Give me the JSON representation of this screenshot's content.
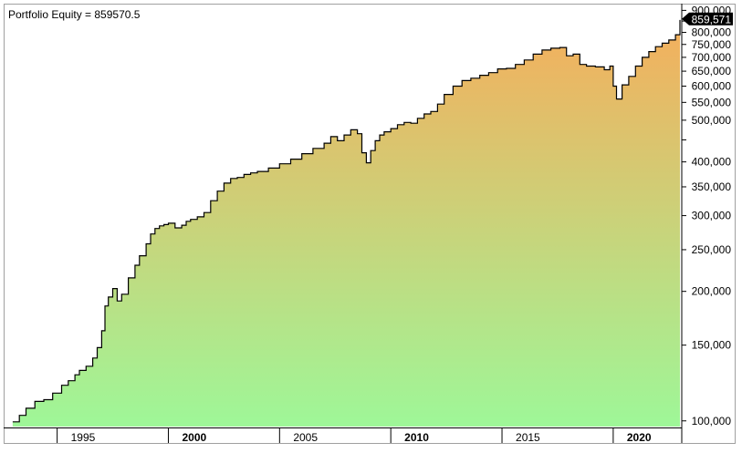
{
  "chart_data": {
    "type": "area",
    "title": "Portfolio Equity = 859570.5",
    "y_scale": "log",
    "ylim": [
      97000,
      915000
    ],
    "xlim": [
      1992.8,
      2023.0
    ],
    "y_ticks": [
      100000,
      150000,
      200000,
      250000,
      300000,
      350000,
      400000,
      450000,
      500000,
      550000,
      600000,
      650000,
      700000,
      750000,
      800000,
      850000,
      900000
    ],
    "y_tick_labels": [
      "100,000",
      "150,000",
      "200,000",
      "250,000",
      "300,000",
      "350,000",
      "400,000",
      "",
      "500,000",
      "550,000",
      "600,000",
      "650,000",
      "700,000",
      "750,000",
      "800,000",
      "",
      "900,000"
    ],
    "x_ticks": [
      1995,
      2000,
      2005,
      2010,
      2015,
      2020
    ],
    "x_tick_labels": [
      "1995",
      "2000",
      "2005",
      "2010",
      "2015",
      "2020"
    ],
    "x_bold_labels": [
      "2000",
      "2010",
      "2020"
    ],
    "last_value_label": "859,571",
    "last_value": 859571,
    "grid": false,
    "colors": {
      "fill_top": "#f5ae5c",
      "fill_bottom": "#9ef798",
      "line": "#000000"
    },
    "series": [
      {
        "x": [
          1993.0,
          1993.3,
          1993.6,
          1994.0,
          1994.4,
          1994.8,
          1995.2,
          1995.5,
          1995.8,
          1996.0,
          1996.3,
          1996.6,
          1996.8,
          1997.0,
          1997.15,
          1997.3,
          1997.5,
          1997.7,
          1997.9,
          1998.2,
          1998.5,
          1998.7,
          1999.0,
          1999.2,
          1999.4,
          1999.6,
          1999.8,
          2000.0,
          2000.3,
          2000.6,
          2000.8,
          2001.0,
          2001.3,
          2001.6,
          2001.9,
          2002.2,
          2002.5,
          2002.8,
          2003.1,
          2003.4,
          2003.7,
          2004.0,
          2004.5,
          2005.0,
          2005.5,
          2006.0,
          2006.5,
          2007.0,
          2007.3,
          2007.6,
          2007.9,
          2008.2,
          2008.5,
          2008.7,
          2008.9,
          2009.1,
          2009.3,
          2009.5,
          2009.7,
          2010.0,
          2010.3,
          2010.6,
          2010.9,
          2011.2,
          2011.5,
          2011.8,
          2012.1,
          2012.4,
          2012.8,
          2013.2,
          2013.6,
          2014.0,
          2014.4,
          2014.8,
          2015.2,
          2015.6,
          2016.0,
          2016.4,
          2016.8,
          2017.2,
          2017.6,
          2017.9,
          2018.2,
          2018.5,
          2018.8,
          2019.2,
          2019.6,
          2019.85,
          2020.0,
          2020.15,
          2020.4,
          2020.7,
          2021.0,
          2021.3,
          2021.6,
          2021.9,
          2022.2,
          2022.5,
          2022.8,
          2023.0
        ],
        "y": [
          99500,
          103000,
          107000,
          111000,
          112000,
          116000,
          121000,
          124000,
          128000,
          131000,
          134000,
          140000,
          148000,
          162000,
          185000,
          194000,
          203000,
          190000,
          197000,
          215000,
          230000,
          242000,
          258000,
          272000,
          280000,
          284000,
          286000,
          288000,
          281000,
          285000,
          291000,
          294000,
          298000,
          305000,
          325000,
          342000,
          357000,
          366000,
          368000,
          374000,
          377000,
          380000,
          387000,
          396000,
          406000,
          418000,
          430000,
          442000,
          458000,
          448000,
          462000,
          475000,
          465000,
          420000,
          398000,
          425000,
          448000,
          462000,
          470000,
          478000,
          488000,
          494000,
          492000,
          505000,
          517000,
          524000,
          545000,
          574000,
          600000,
          618000,
          626000,
          636000,
          645000,
          658000,
          660000,
          674000,
          690000,
          712000,
          728000,
          735000,
          738000,
          706000,
          712000,
          674000,
          668000,
          665000,
          655000,
          668000,
          600000,
          560000,
          604000,
          632000,
          668000,
          700000,
          722000,
          741000,
          755000,
          768000,
          790000,
          855000
        ]
      }
    ]
  }
}
